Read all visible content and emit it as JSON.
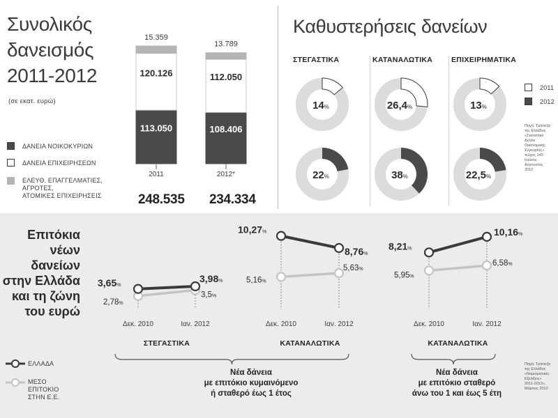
{
  "loans": {
    "title_line1": "Συνολικός",
    "title_line2": "δανεισμός",
    "title_line3": "2011-2012",
    "unit": "(σε εκατ. ευρώ)",
    "legend": [
      {
        "label": "ΔΑΝΕΙΑ ΝΟΙΚΟΚΥΡΙΩΝ",
        "color": "#4a4a4a"
      },
      {
        "label": "ΔΑΝΕΙΑ ΕΠΙΧΕΙΡΗΣΕΩΝ",
        "color": "#ffffff"
      },
      {
        "label": "ΕΛΕΥΘ. ΕΠΑΓΓΕΛΜΑΤΙΕΣ,",
        "label2": "ΑΓΡΟΤΕΣ,",
        "label3": "ΑΤΟΜΙΚΕΣ ΕΠΙΧΕΙΡΗΣΕΙΣ",
        "color": "#b4b4b4"
      }
    ],
    "years": [
      {
        "label": "2011",
        "top": "15.359",
        "middle": "120.126",
        "bottom": "113.050",
        "total": "248.535"
      },
      {
        "label": "2012*",
        "top": "13.789",
        "middle": "112.050",
        "bottom": "108.406",
        "total": "234.334"
      }
    ]
  },
  "arrears": {
    "title": "Καθυστερήσεις δανείων",
    "categories": [
      "ΣΤΕΓΑΣΤΙΚΑ",
      "ΚΑΤΑΝΑΛΩΤΙΚΑ",
      "ΕΠΙΧΕΙΡΗΜΑΤΙΚΑ"
    ],
    "legend_2011": "2011",
    "legend_2012": "2012",
    "source": [
      "Πηγή: Τράπεζα",
      "της Ελλάδος",
      "«Στατιστικό",
      "Δελτίο",
      "Οικονομικής",
      "Συγκυρίας»",
      "τεύχος 140",
      "Ιούλιος-",
      "Αύγουστος",
      "2012"
    ]
  },
  "rates": {
    "title": [
      "Επιτόκια",
      "νέων",
      "δανείων",
      "στην Ελλάδα",
      "και τη ζώνη",
      "του ευρώ"
    ],
    "legend_greece": "ΕΛΛΑΔΑ",
    "legend_eu": [
      "ΜΕΣΟ",
      "ΕΠΙΤΟΚΙΟ",
      "ΣΤΗΝ Ε.Ε."
    ],
    "panel_labels": [
      "ΣΤΕΓΑΣΤΙΚΑ",
      "ΚΑΤΑΝΑΛΩΤΙΚΑ",
      "ΚΑΤΑΝΑΛΩΤΙΚΑ"
    ],
    "brace1": [
      "Νέα δάνεια",
      "με επιτόκιο κυμαινόμενο",
      "ή σταθερό έως 1 έτος"
    ],
    "brace2": [
      "Νέα δάνεια",
      "με επιτόκιο σταθερό",
      "άνω του 1 και έως 5 έτη"
    ],
    "source": [
      "Πηγή: Τράπεζα",
      "της Ελλάδος",
      "«Νομισματικές",
      "Εξελίξεις»",
      "2011-2012»,",
      "Μάρτιος 2012"
    ]
  },
  "chart_data": [
    {
      "type": "bar",
      "title": "Συνολικός δανεισμός 2011-2012",
      "subtitle": "(σε εκατ. ευρώ)",
      "stacked": true,
      "categories": [
        "2011",
        "2012*"
      ],
      "series": [
        {
          "name": "ΔΑΝΕΙΑ ΝΟΙΚΟΚΥΡΙΩΝ",
          "values": [
            113050,
            108406
          ],
          "color": "#4a4a4a"
        },
        {
          "name": "ΔΑΝΕΙΑ ΕΠΙΧΕΙΡΗΣΕΩΝ",
          "values": [
            120126,
            112050
          ],
          "color": "#ffffff"
        },
        {
          "name": "ΕΛΕΥΘ. ΕΠΑΓΓΕΛΜΑΤΙΕΣ, ΑΓΡΟΤΕΣ, ΑΤΟΜΙΚΕΣ ΕΠΙΧΕΙΡΗΣΕΙΣ",
          "values": [
            15359,
            13789
          ],
          "color": "#b4b4b4"
        }
      ],
      "totals": [
        248535,
        234334
      ]
    },
    {
      "type": "pie",
      "title": "Καθυστερήσεις δανείων",
      "donuts": [
        {
          "category": "ΣΤΕΓΑΣΤΙΚΑ",
          "year": "2011",
          "value": 14,
          "label": "14"
        },
        {
          "category": "ΚΑΤΑΝΑΛΩΤΙΚΑ",
          "year": "2011",
          "value": 26.4,
          "label": "26,4"
        },
        {
          "category": "ΕΠΙΧΕΙΡΗΜΑΤΙΚΑ",
          "year": "2011",
          "value": 13,
          "label": "13"
        },
        {
          "category": "ΣΤΕΓΑΣΤΙΚΑ",
          "year": "2012",
          "value": 22,
          "label": "22"
        },
        {
          "category": "ΚΑΤΑΝΑΛΩΤΙΚΑ",
          "year": "2012",
          "value": 38,
          "label": "38"
        },
        {
          "category": "ΕΠΙΧΕΙΡΗΜΑΤΙΚΑ",
          "year": "2012",
          "value": 22.5,
          "label": "22,5"
        }
      ],
      "colors": {
        "2011": "#ffffff",
        "2012": "#4a4a4a",
        "track": "#dcdcdc"
      }
    },
    {
      "type": "line",
      "title": "ΣΤΕΓΑΣΤΙΚΑ",
      "categories": [
        "Δεκ. 2010",
        "Ιαν. 2012"
      ],
      "series": [
        {
          "name": "ΕΛΛΑΔΑ",
          "values": [
            3.65,
            3.98
          ],
          "labels": [
            "3,65",
            "3,98"
          ],
          "color": "#3a3a3a"
        },
        {
          "name": "ΜΕΣΟ ΕΠΙΤΟΚΙΟ ΣΤΗΝ Ε.Ε.",
          "values": [
            2.78,
            3.5
          ],
          "labels": [
            "2,78",
            "3,5"
          ],
          "color": "#c4c4c4"
        }
      ]
    },
    {
      "type": "line",
      "title": "ΚΑΤΑΝΑΛΩΤΙΚΑ",
      "categories": [
        "Δεκ. 2010",
        "Ιαν. 2012"
      ],
      "series": [
        {
          "name": "ΕΛΛΑΔΑ",
          "values": [
            10.27,
            8.76
          ],
          "labels": [
            "10,27",
            "8,76"
          ],
          "color": "#3a3a3a"
        },
        {
          "name": "ΜΕΣΟ ΕΠΙΤΟΚΙΟ ΣΤΗΝ Ε.Ε.",
          "values": [
            5.16,
            5.63
          ],
          "labels": [
            "5,16",
            "5,63"
          ],
          "color": "#c4c4c4"
        }
      ]
    },
    {
      "type": "line",
      "title": "ΚΑΤΑΝΑΛΩΤΙΚΑ",
      "categories": [
        "Δεκ. 2010",
        "Ιαν. 2012"
      ],
      "series": [
        {
          "name": "ΕΛΛΑΔΑ",
          "values": [
            8.21,
            10.16
          ],
          "labels": [
            "8,21",
            "10,16"
          ],
          "color": "#3a3a3a"
        },
        {
          "name": "ΜΕΣΟ ΕΠΙΤΟΚΙΟ ΣΤΗΝ Ε.Ε.",
          "values": [
            5.95,
            6.58
          ],
          "labels": [
            "5,95",
            "6,58"
          ],
          "color": "#c4c4c4"
        }
      ]
    }
  ]
}
